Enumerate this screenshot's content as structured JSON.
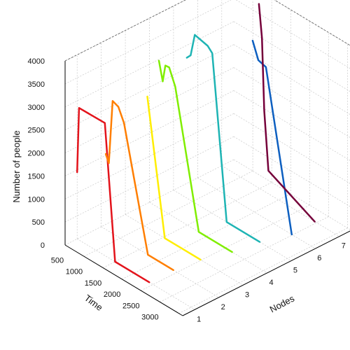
{
  "chart_data": {
    "type": "line-3d",
    "xlabel": "Time",
    "ylabel": "Nodes",
    "zlabel": "Number of people",
    "xlim": [
      0,
      3100
    ],
    "ylim": [
      0.5,
      7.5
    ],
    "zlim": [
      0,
      4000
    ],
    "x_ticks": [
      "500",
      "1000",
      "1500",
      "2000",
      "2500",
      "3000"
    ],
    "y_ticks": [
      "1",
      "2",
      "3",
      "4",
      "5",
      "6",
      "7"
    ],
    "z_ticks": [
      "0",
      "500",
      "1000",
      "1500",
      "2000",
      "2500",
      "3000",
      "3500",
      "4000"
    ],
    "grid": true,
    "series": [
      {
        "node": 1,
        "color": "#e3131b",
        "points": [
          [
            0,
            1450
          ],
          [
            50,
            2870
          ],
          [
            730,
            2880
          ],
          [
            1000,
            0
          ],
          [
            1900,
            0
          ]
        ]
      },
      {
        "node": 2,
        "color": "#ff7e00",
        "points": [
          [
            120,
            1640
          ],
          [
            200,
            1480
          ],
          [
            300,
            2880
          ],
          [
            450,
            2830
          ],
          [
            600,
            2550
          ],
          [
            1230,
            0
          ],
          [
            1900,
            0
          ]
        ]
      },
      {
        "node": 3,
        "color": "#ffee00",
        "points": [
          [
            580,
            2850
          ],
          [
            1040,
            0
          ],
          [
            1980,
            0
          ]
        ]
      },
      {
        "node": 4,
        "color": "#80ee00",
        "points": [
          [
            250,
            3200
          ],
          [
            350,
            2800
          ],
          [
            420,
            3180
          ],
          [
            520,
            3190
          ],
          [
            680,
            2850
          ],
          [
            1300,
            0
          ],
          [
            2180,
            0
          ]
        ]
      },
      {
        "node": 5,
        "color": "#1eb4b4",
        "points": [
          [
            350,
            3050
          ],
          [
            450,
            3150
          ],
          [
            560,
            3650
          ],
          [
            900,
            3580
          ],
          [
            1020,
            3480
          ],
          [
            1400,
            0
          ],
          [
            2270,
            0
          ]
        ]
      },
      {
        "node": 6,
        "color": "#0d5fc0",
        "points": [
          [
            1450,
            3700
          ],
          [
            1600,
            3350
          ],
          [
            1800,
            3300
          ],
          [
            2480,
            0
          ]
        ]
      },
      {
        "node": 7,
        "color": "#75003a",
        "points": [
          [
            980,
            4000
          ],
          [
            1060,
            3300
          ],
          [
            1120,
            1750
          ],
          [
            1160,
            1300
          ],
          [
            1230,
            500
          ],
          [
            2450,
            0
          ]
        ]
      }
    ]
  }
}
